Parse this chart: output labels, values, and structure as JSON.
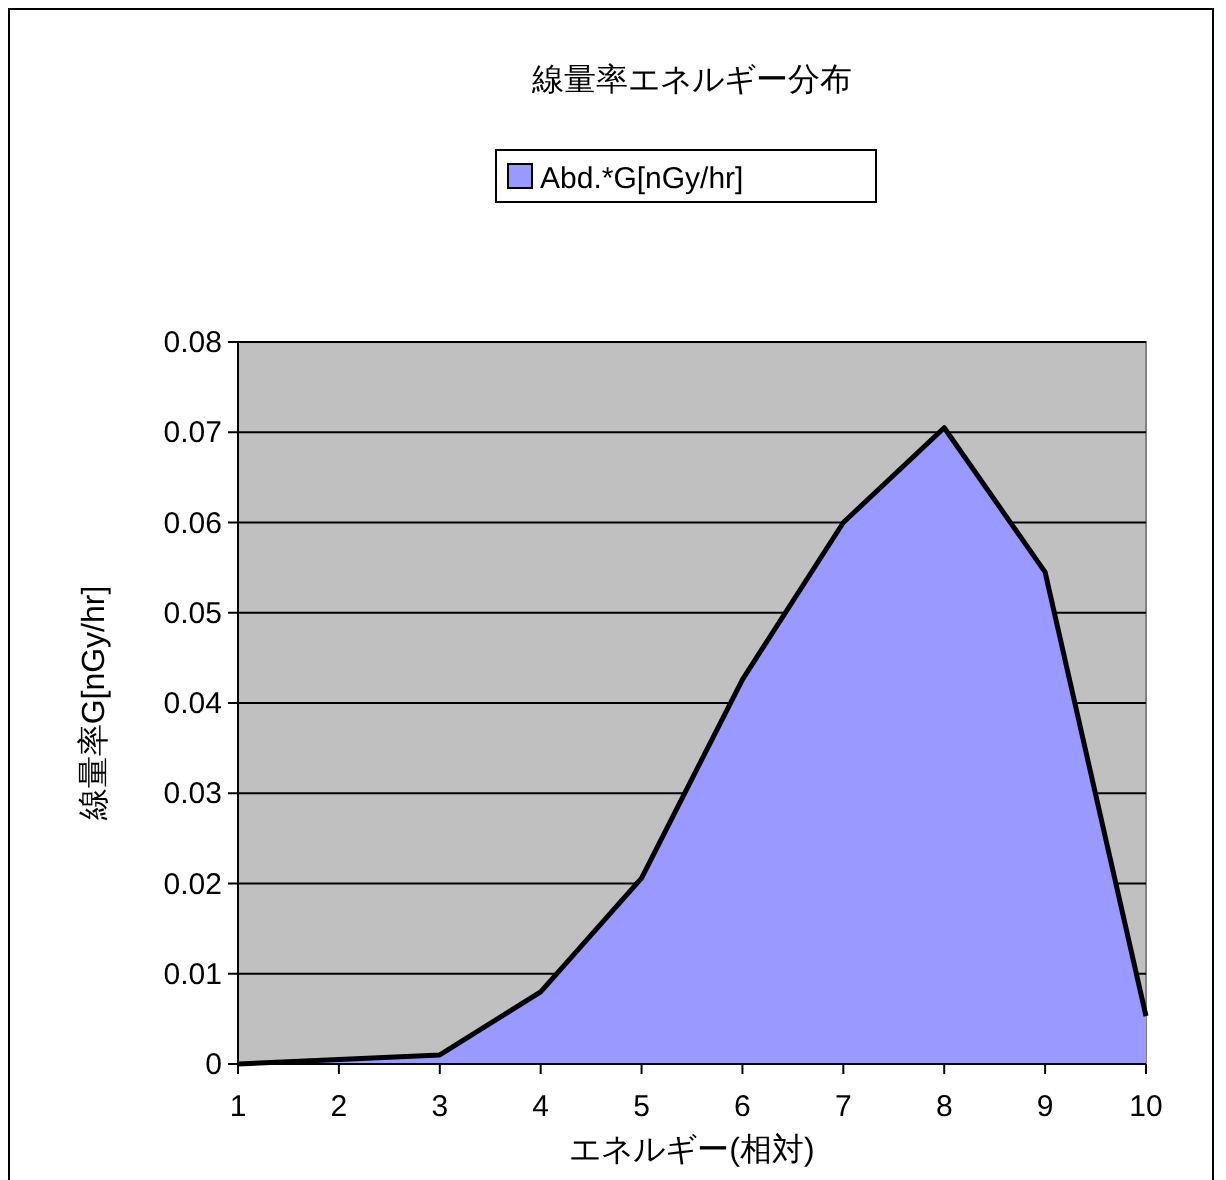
{
  "chart_data": {
    "type": "area",
    "title": "線量率エネルギー分布",
    "xlabel": "エネルギー(相対)",
    "ylabel": "線量率G[nGy/hr]",
    "categories": [
      "1",
      "2",
      "3",
      "4",
      "5",
      "6",
      "7",
      "8",
      "9",
      "10"
    ],
    "series": [
      {
        "name": "Abd.*G[nGy/hr]",
        "color": "#9999ff",
        "values": [
          0,
          0.0005,
          0.001,
          0.008,
          0.0206,
          0.0426,
          0.06,
          0.0705,
          0.0545,
          0.0053
        ]
      }
    ],
    "ylim": [
      0,
      0.08
    ],
    "yticks": [
      0,
      0.01,
      0.02,
      0.03,
      0.04,
      0.05,
      0.06,
      0.07,
      0.08
    ],
    "grid": "y",
    "legend": "top"
  }
}
